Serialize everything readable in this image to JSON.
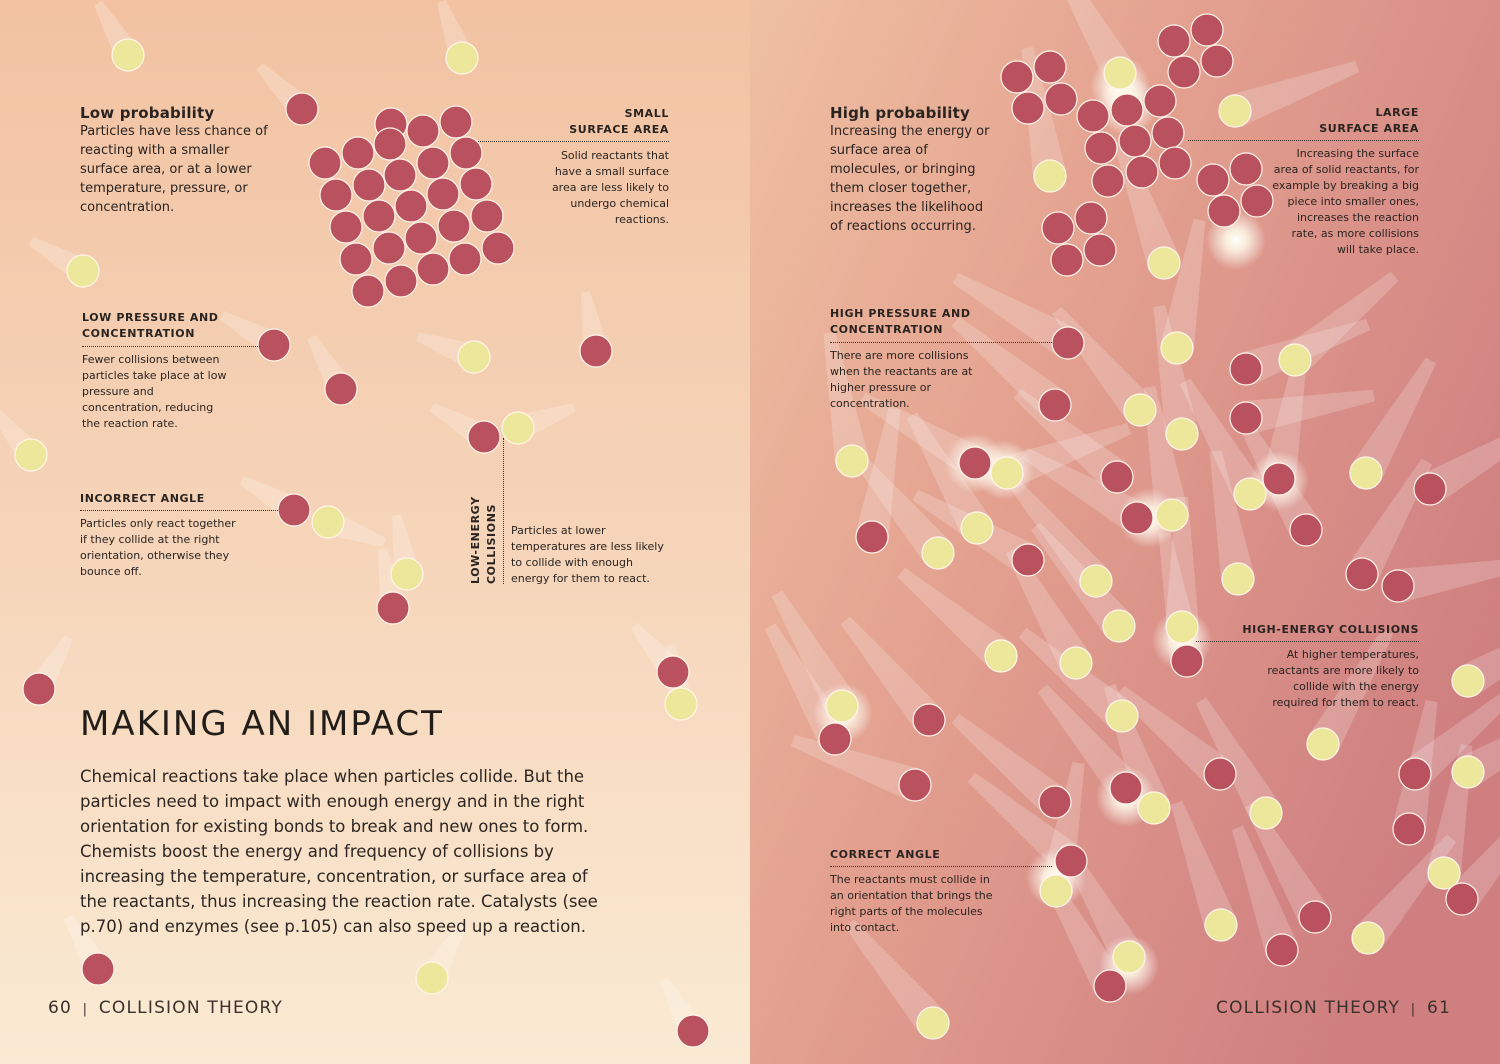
{
  "colors": {
    "reactant_red": "#b9525e",
    "reactant_yellow": "#ece79a",
    "bg_left_top": "#f2c4a4",
    "bg_left_bottom": "#f9e6cf",
    "bg_right": "#d88d86"
  },
  "left": {
    "low_probability": {
      "title": "Low probability",
      "text": "Particles have less chance of reacting with a smaller surface area, or at a lower temperature, pressure, or concentration."
    },
    "small_surface": {
      "label_line1": "SMALL",
      "label_line2": "SURFACE AREA",
      "text": "Solid reactants that have a small surface area are less likely to undergo chemical reactions."
    },
    "low_pressure": {
      "label_line1": "LOW PRESSURE AND",
      "label_line2": "CONCENTRATION",
      "text": "Fewer collisions between particles take place at low pressure and concentration, reducing the reaction rate."
    },
    "incorrect_angle": {
      "label": "INCORRECT ANGLE",
      "text": "Particles only react together if they collide at the right orientation, otherwise they bounce off."
    },
    "low_energy": {
      "label_line1": "LOW-ENERGY",
      "label_line2": "COLLISIONS",
      "text": "Particles at lower temperatures are less likely to collide with enough energy for them to react."
    },
    "title": "MAKING AN IMPACT",
    "body": "Chemical reactions take place when particles collide. But the particles need to impact with enough energy and in the right orientation for existing bonds to break and new ones to form. Chemists boost the energy and frequency of collisions by increasing the temperature, concentration, or surface area of the reactants, thus increasing the reaction rate. Catalysts (see p.70) and enzymes (see p.105) can also speed up a reaction.",
    "folio_number": "60",
    "folio_sep": "|",
    "folio_title": "COLLISION THEORY"
  },
  "right": {
    "high_probability": {
      "title": "High probability",
      "text": "Increasing the energy or surface area of molecules, or bringing them closer together, increases the likelihood of reactions occurring."
    },
    "large_surface": {
      "label_line1": "LARGE",
      "label_line2": "SURFACE AREA",
      "text": "Increasing the surface area of solid reactants, for example by breaking a big piece into smaller ones, increases the reaction rate, as more collisions will take place."
    },
    "high_pressure": {
      "label_line1": "HIGH PRESSURE AND",
      "label_line2": "CONCENTRATION",
      "text": "There are more collisions when the reactants are at higher pressure or concentration."
    },
    "high_energy": {
      "label": "HIGH-ENERGY COLLISIONS",
      "text": "At higher temperatures, reactants are more likely to collide with the energy required for them to react."
    },
    "correct_angle": {
      "label": "CORRECT ANGLE",
      "text": "The reactants must collide in an orientation that brings the right parts of the molecules into contact."
    },
    "folio_title": "COLLISION THEORY",
    "folio_sep": "|",
    "folio_number": "61"
  }
}
